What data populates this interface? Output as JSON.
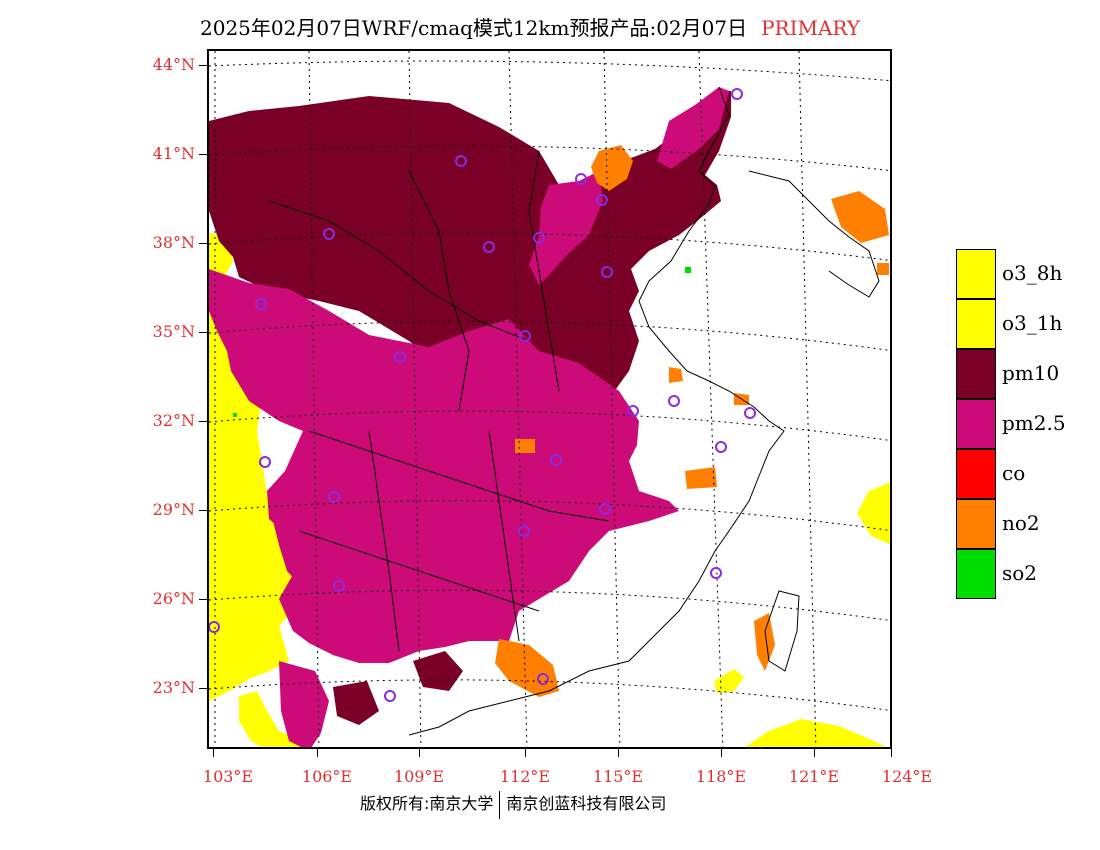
{
  "title": {
    "main": "2025年02月07日WRF/cmaq模式12km预报产品:02月07日",
    "tag": "PRIMARY"
  },
  "axes": {
    "lat_labels": [
      "44°N",
      "41°N",
      "38°N",
      "35°N",
      "32°N",
      "29°N",
      "26°N",
      "23°N"
    ],
    "lon_labels": [
      "103°E",
      "106°E",
      "109°E",
      "112°E",
      "115°E",
      "118°E",
      "121°E",
      "124°E"
    ]
  },
  "legend": [
    {
      "label": "o3_8h",
      "color": "#ffff00"
    },
    {
      "label": "o3_1h",
      "color": "#ffff00"
    },
    {
      "label": "pm10",
      "color": "#7a0027"
    },
    {
      "label": "pm2.5",
      "color": "#cc0a78"
    },
    {
      "label": "co",
      "color": "#ff0000"
    },
    {
      "label": "no2",
      "color": "#ff7f00"
    },
    {
      "label": "so2",
      "color": "#00dd00"
    }
  ],
  "footer": {
    "left": "版权所有:南京大学",
    "right": "南京创蓝科技有限公司"
  },
  "colors": {
    "pm10": "#7a0027",
    "pm25": "#cc0a78",
    "o3": "#ffff00",
    "no2": "#ff7f00",
    "so2": "#00dd00",
    "axis_label": "#e03030",
    "station": "#8a2be2"
  }
}
